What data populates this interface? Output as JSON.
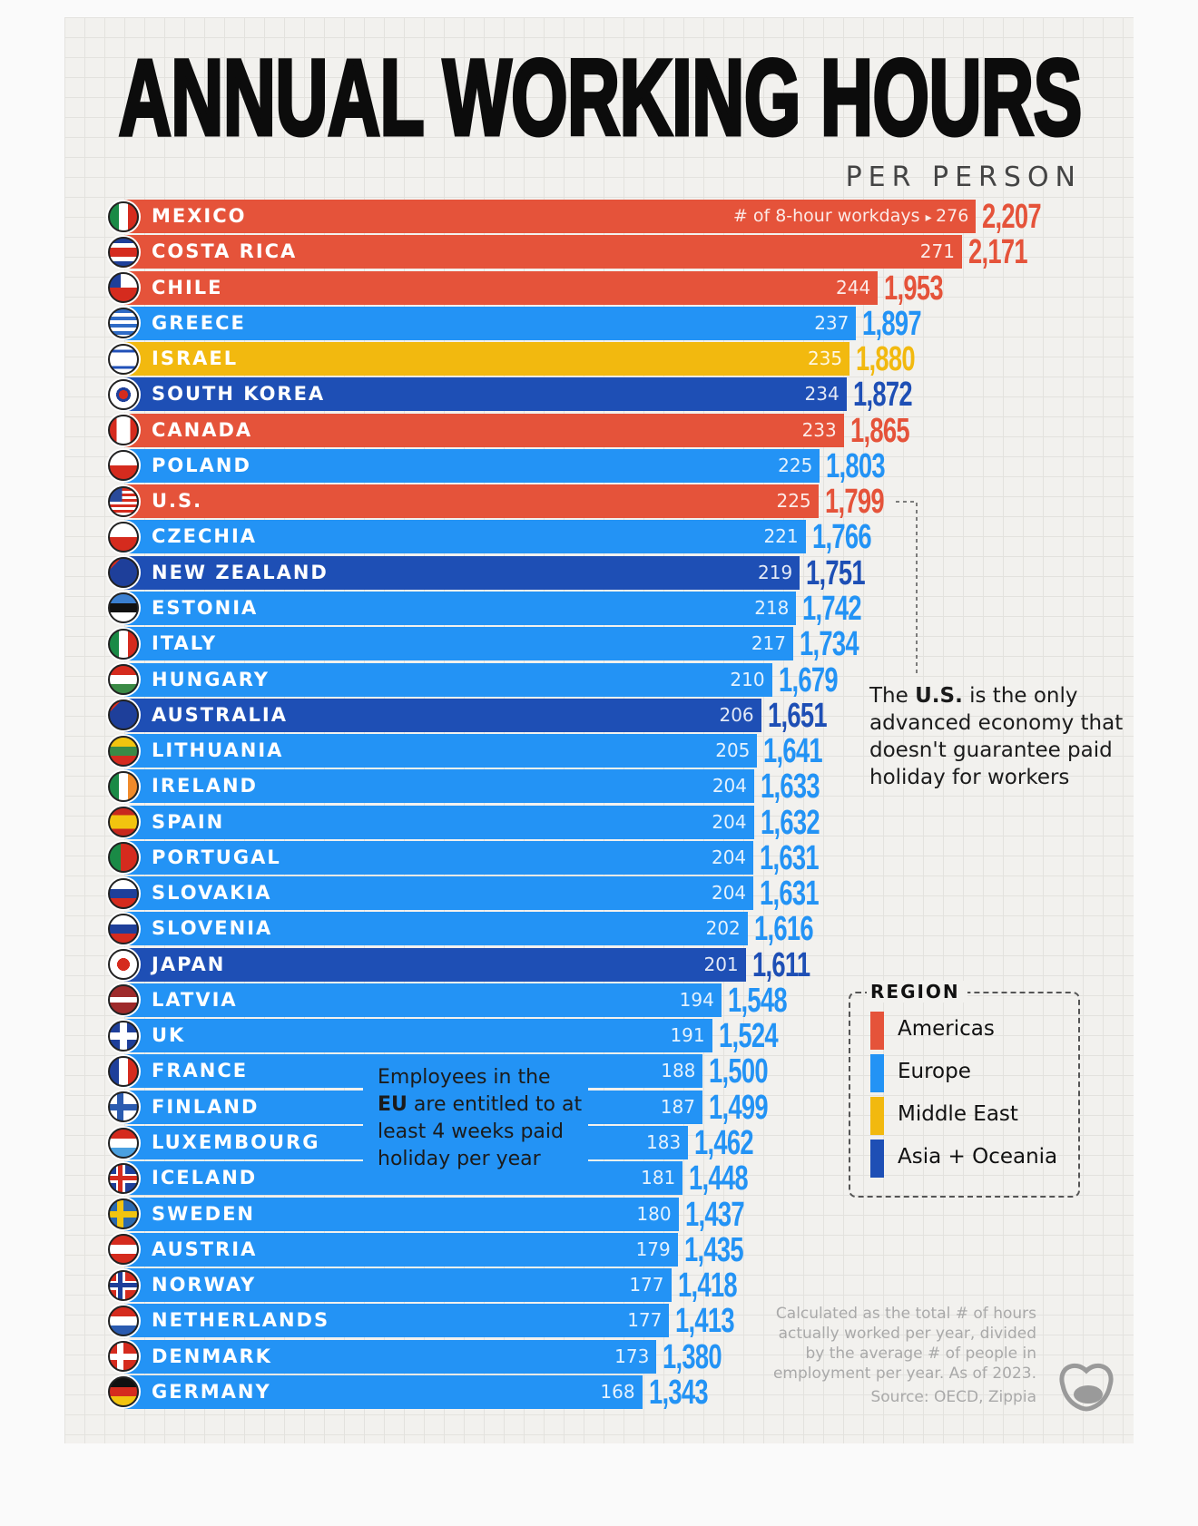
{
  "chart_data": {
    "type": "bar",
    "orientation": "horizontal",
    "title": "ANNUAL WORKING HOURS",
    "subtitle": "PER PERSON",
    "workdays_label": "# of 8-hour workdays",
    "categories": [
      "MEXICO",
      "COSTA RICA",
      "CHILE",
      "GREECE",
      "ISRAEL",
      "SOUTH KOREA",
      "CANADA",
      "POLAND",
      "U.S.",
      "CZECHIA",
      "NEW ZEALAND",
      "ESTONIA",
      "ITALY",
      "HUNGARY",
      "AUSTRALIA",
      "LITHUANIA",
      "IRELAND",
      "SPAIN",
      "PORTUGAL",
      "SLOVAKIA",
      "SLOVENIA",
      "JAPAN",
      "LATVIA",
      "UK",
      "FRANCE",
      "FINLAND",
      "LUXEMBOURG",
      "ICELAND",
      "SWEDEN",
      "AUSTRIA",
      "NORWAY",
      "NETHERLANDS",
      "DENMARK",
      "GERMANY"
    ],
    "values": [
      2207,
      2171,
      1953,
      1897,
      1880,
      1872,
      1865,
      1803,
      1799,
      1766,
      1751,
      1742,
      1734,
      1679,
      1651,
      1641,
      1633,
      1632,
      1631,
      1631,
      1616,
      1611,
      1548,
      1524,
      1500,
      1499,
      1462,
      1448,
      1437,
      1435,
      1418,
      1413,
      1380,
      1343
    ],
    "value_labels": [
      "2,207",
      "2,171",
      "1,953",
      "1,897",
      "1,880",
      "1,872",
      "1,865",
      "1,803",
      "1,799",
      "1,766",
      "1,751",
      "1,742",
      "1,734",
      "1,679",
      "1,651",
      "1,641",
      "1,633",
      "1,632",
      "1,631",
      "1,631",
      "1,616",
      "1,611",
      "1,548",
      "1,524",
      "1,500",
      "1,499",
      "1,462",
      "1,448",
      "1,437",
      "1,435",
      "1,418",
      "1,413",
      "1,380",
      "1,343"
    ],
    "workdays": [
      276,
      271,
      244,
      237,
      235,
      234,
      233,
      225,
      225,
      221,
      219,
      218,
      217,
      210,
      206,
      205,
      204,
      204,
      204,
      204,
      202,
      201,
      194,
      191,
      188,
      187,
      183,
      181,
      180,
      179,
      177,
      177,
      173,
      168
    ],
    "regions": [
      "Americas",
      "Americas",
      "Americas",
      "Europe",
      "Middle East",
      "Asia + Oceania",
      "Americas",
      "Europe",
      "Americas",
      "Europe",
      "Asia + Oceania",
      "Europe",
      "Europe",
      "Europe",
      "Asia + Oceania",
      "Europe",
      "Europe",
      "Europe",
      "Europe",
      "Europe",
      "Europe",
      "Asia + Oceania",
      "Europe",
      "Europe",
      "Europe",
      "Europe",
      "Europe",
      "Europe",
      "Europe",
      "Europe",
      "Europe",
      "Europe",
      "Europe",
      "Europe"
    ],
    "xlim": [
      0,
      2207
    ],
    "grid": false,
    "legend": {
      "title": "REGION",
      "placement": "right",
      "entries": [
        {
          "name": "Americas",
          "color": "#e5533a"
        },
        {
          "name": "Europe",
          "color": "#2393f5"
        },
        {
          "name": "Middle East",
          "color": "#f2b90f"
        },
        {
          "name": "Asia + Oceania",
          "color": "#1e4fb5"
        }
      ]
    }
  },
  "annotations": {
    "us_note": {
      "pre": "The ",
      "bold": "U.S.",
      "line1_rest": " is the only",
      "line2": "advanced economy that",
      "line3": "doesn't guarantee paid",
      "line4": "holiday for workers"
    },
    "eu_note": {
      "line1": "Employees in the",
      "bold": "EU",
      "line2_rest": " are entitled to at",
      "line3": "least 4 weeks paid",
      "line4": "holiday per year"
    }
  },
  "footnote": {
    "line1": "Calculated as the total # of hours",
    "line2": "actually worked per year, divided",
    "line3": "by the average # of people in",
    "line4": "employment per year. As of 2023.",
    "source": "Source: OECD, Zippia"
  }
}
